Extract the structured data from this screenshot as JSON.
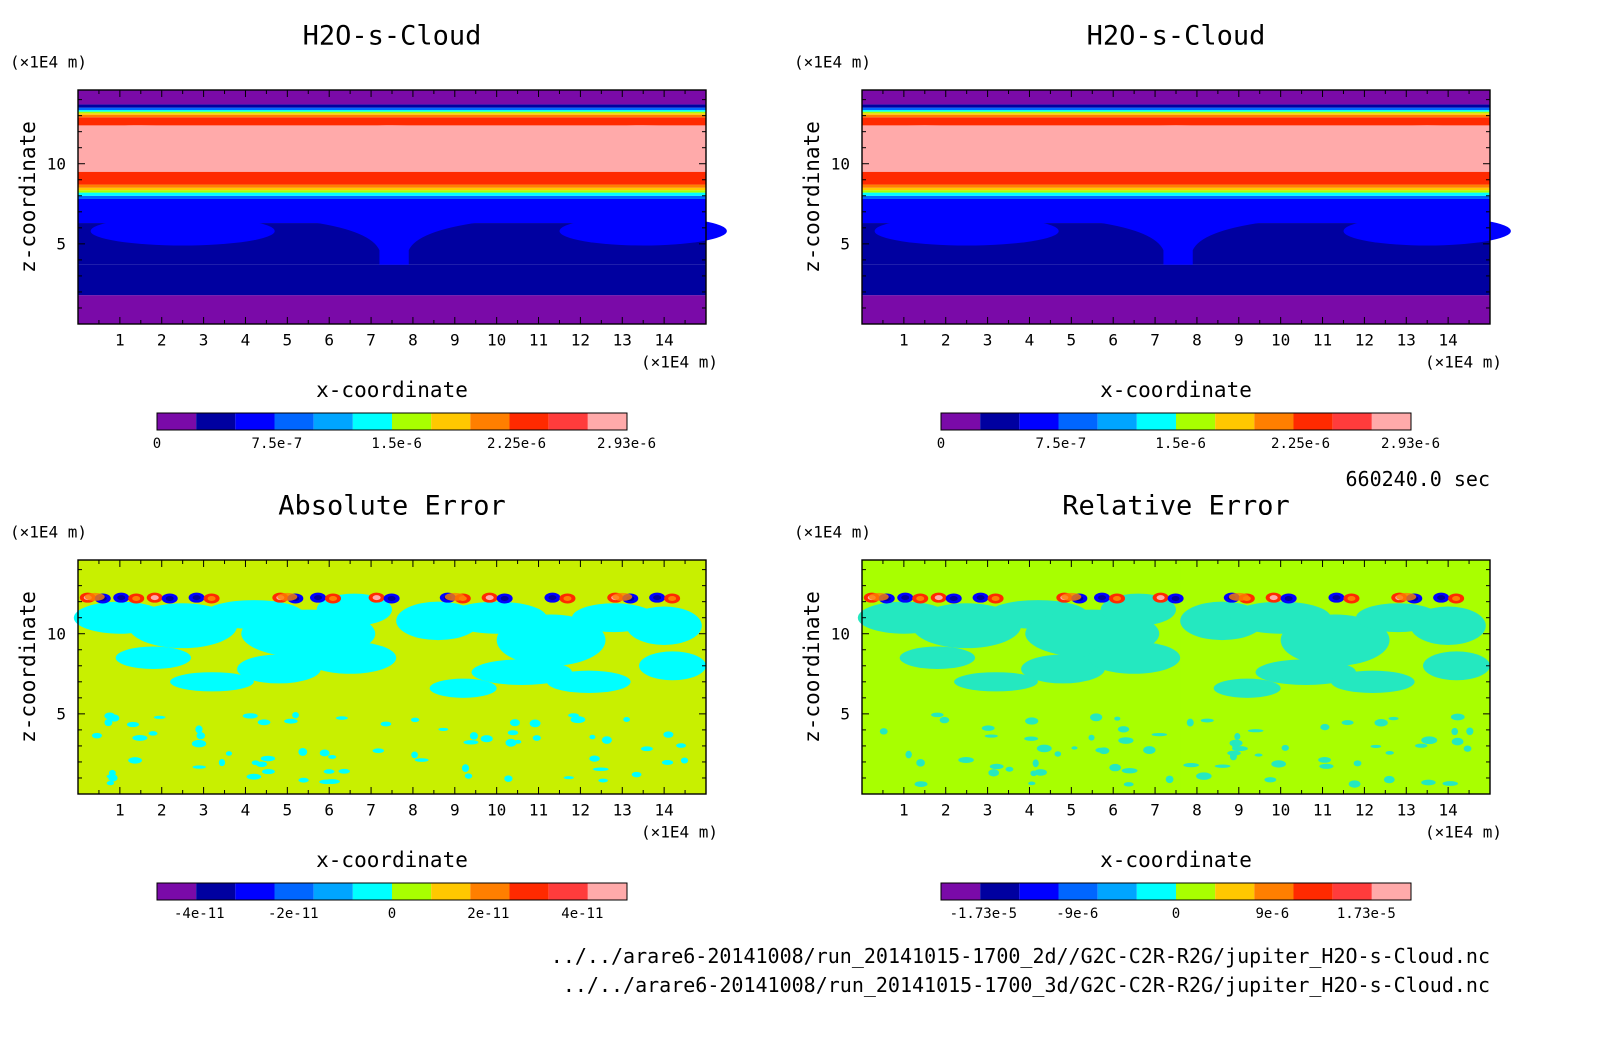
{
  "panels": [
    {
      "title": "H2O-s-Cloud",
      "x_unit": "(×1E4 m)",
      "y_unit": "(×1E4 m)",
      "xlabel": "x-coordinate",
      "ylabel": "z-coordinate",
      "colorbar_ticks": [
        "0",
        "7.5e-7",
        "1.5e-6",
        "2.25e-6",
        "2.93e-6"
      ]
    },
    {
      "title": "H2O-s-Cloud",
      "x_unit": "(×1E4 m)",
      "y_unit": "(×1E4 m)",
      "xlabel": "x-coordinate",
      "ylabel": "z-coordinate",
      "colorbar_ticks": [
        "0",
        "7.5e-7",
        "1.5e-6",
        "2.25e-6",
        "2.93e-6"
      ]
    },
    {
      "title": "Absolute Error",
      "x_unit": "(×1E4 m)",
      "y_unit": "(×1E4 m)",
      "xlabel": "x-coordinate",
      "ylabel": "z-coordinate",
      "colorbar_ticks": [
        "-4e-11",
        "-2e-11",
        "0",
        "2e-11",
        "4e-11"
      ]
    },
    {
      "title": "Relative Error",
      "x_unit": "(×1E4 m)",
      "y_unit": "(×1E4 m)",
      "xlabel": "x-coordinate",
      "ylabel": "z-coordinate",
      "colorbar_ticks": [
        "-1.73e-5",
        "-9e-6",
        "0",
        "9e-6",
        "1.73e-5"
      ]
    }
  ],
  "x_tick_labels": [
    "1",
    "2",
    "3",
    "4",
    "5",
    "6",
    "7",
    "8",
    "9",
    "10",
    "11",
    "12",
    "13",
    "14"
  ],
  "y_tick_labels": [
    "5",
    "10"
  ],
  "time_label": "660240.0 sec",
  "file_paths": [
    "../../arare6-20141008/run_20141015-1700_2d//G2C-C2R-R2G/jupiter_H2O-s-Cloud.nc",
    "../../arare6-20141008/run_20141015-1700_3d/G2C-C2R-R2G/jupiter_H2O-s-Cloud.nc"
  ],
  "colormap": [
    "#7a0aa8",
    "#0000a0",
    "#0000ff",
    "#0066ff",
    "#00a5ff",
    "#00ffff",
    "#24e8c0",
    "#a8ff00",
    "#ffc800",
    "#ff7f00",
    "#ff2a00",
    "#ff3c3c",
    "#ffaaaa"
  ],
  "chart_data": [
    {
      "type": "heatmap",
      "title": "H2O-s-Cloud",
      "xlabel": "x-coordinate",
      "ylabel": "z-coordinate",
      "x_unit": "(×1E4 m)",
      "y_unit": "(×1E4 m)",
      "xlim": [
        0,
        15
      ],
      "ylim": [
        0,
        14.6
      ],
      "colorbar_range": [
        0,
        2.93e-06
      ],
      "bands_bottom_to_top": [
        {
          "z": [
            0,
            1.8
          ],
          "level": "0"
        },
        {
          "z": [
            1.8,
            3.8
          ],
          "level": "~2.5e-7 (dark blue)"
        },
        {
          "z": [
            3.8,
            6.2
          ],
          "level": "~2.5e-7 to 5e-7 (dark blue with blue mushroom plume near x=7.5)"
        },
        {
          "z": [
            6.2,
            7.8
          ],
          "level": "~5e-7 (blue)"
        },
        {
          "z": [
            7.8,
            9.4
          ],
          "level": "~7.5e-7 to 2.5e-6 (gradient)"
        },
        {
          "z": [
            9.4,
            12.5
          ],
          "level": "~2.93e-6 (max, light pink)"
        },
        {
          "z": [
            12.5,
            13.6
          ],
          "level": "gradient to 0"
        },
        {
          "z": [
            13.6,
            14.6
          ],
          "level": "0"
        }
      ]
    },
    {
      "type": "heatmap",
      "title": "H2O-s-Cloud",
      "xlabel": "x-coordinate",
      "ylabel": "z-coordinate",
      "x_unit": "(×1E4 m)",
      "y_unit": "(×1E4 m)",
      "xlim": [
        0,
        15
      ],
      "ylim": [
        0,
        14.6
      ],
      "colorbar_range": [
        0,
        2.93e-06
      ],
      "note": "identical to the first panel"
    },
    {
      "type": "heatmap",
      "title": "Absolute Error",
      "xlabel": "x-coordinate",
      "ylabel": "z-coordinate",
      "x_unit": "(×1E4 m)",
      "y_unit": "(×1E4 m)",
      "xlim": [
        0,
        15
      ],
      "ylim": [
        0,
        14.6
      ],
      "colorbar_range": [
        -4.5e-11,
        4.5e-11
      ],
      "background_level": 0,
      "dipoles_at_z": 12.2,
      "dipole_x": [
        0.4,
        1.2,
        2.0,
        3.0,
        5.0,
        5.9,
        7.3,
        9.0,
        10.0,
        11.5,
        13.0,
        14.0
      ]
    },
    {
      "type": "heatmap",
      "title": "Relative Error",
      "xlabel": "x-coordinate",
      "ylabel": "z-coordinate",
      "x_unit": "(×1E4 m)",
      "y_unit": "(×1E4 m)",
      "xlim": [
        0,
        15
      ],
      "ylim": [
        0,
        14.6
      ],
      "colorbar_range": [
        -1.73e-05,
        1.73e-05
      ],
      "background_level": 0,
      "dipoles_at_z": 12.2,
      "dipole_x": [
        0.4,
        1.2,
        2.0,
        3.0,
        5.0,
        5.9,
        7.3,
        9.0,
        10.0,
        11.5,
        13.0,
        14.0
      ]
    }
  ]
}
